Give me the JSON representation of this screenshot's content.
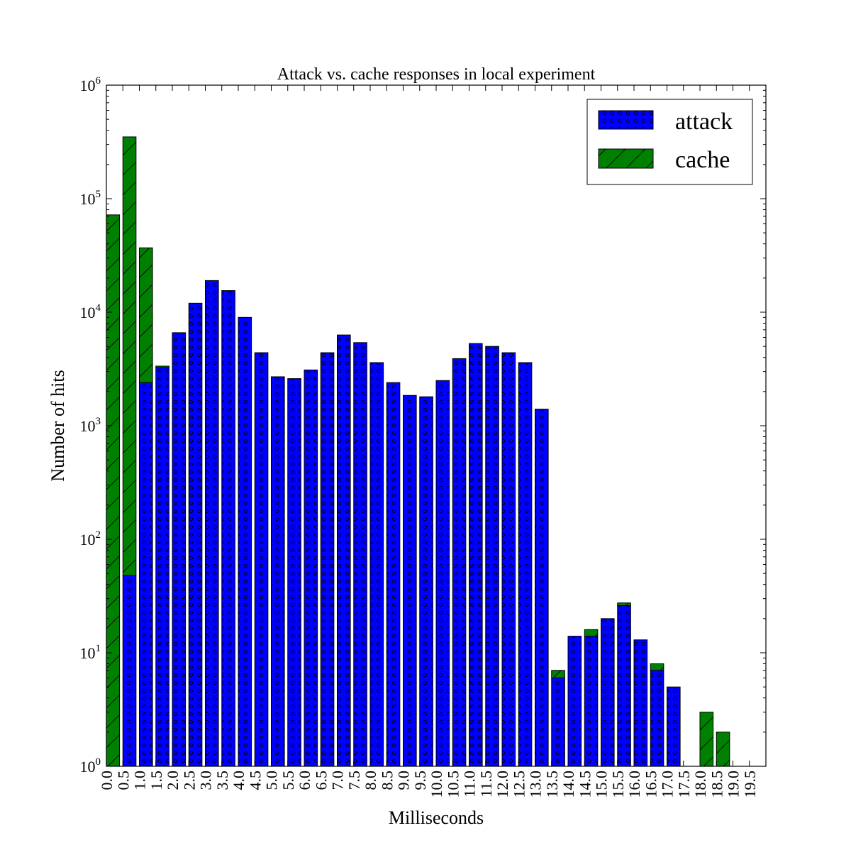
{
  "chart_data": {
    "type": "bar",
    "stacked": true,
    "title": "Attack vs. cache responses in local experiment",
    "xlabel": "Milliseconds",
    "ylabel": "Number of hits",
    "yscale": "log",
    "ylim": [
      1,
      1000000
    ],
    "xlim": [
      0,
      20
    ],
    "bin_width": 0.5,
    "grid": false,
    "legend_position": "top-right",
    "x_tick_labels": [
      "0.0",
      "0.5",
      "1.0",
      "1.5",
      "2.0",
      "2.5",
      "3.0",
      "3.5",
      "4.0",
      "4.5",
      "5.0",
      "5.5",
      "6.0",
      "6.5",
      "7.0",
      "7.5",
      "8.0",
      "8.5",
      "9.0",
      "9.5",
      "10.0",
      "10.5",
      "11.0",
      "11.5",
      "12.0",
      "12.5",
      "13.0",
      "13.5",
      "14.0",
      "14.5",
      "15.0",
      "15.5",
      "16.0",
      "16.5",
      "17.0",
      "17.5",
      "18.0",
      "18.5",
      "19.0",
      "19.5"
    ],
    "y_ticks": [
      {
        "value": 1,
        "base": "10",
        "exp": "0"
      },
      {
        "value": 10,
        "base": "10",
        "exp": "1"
      },
      {
        "value": 100,
        "base": "10",
        "exp": "2"
      },
      {
        "value": 1000,
        "base": "10",
        "exp": "3"
      },
      {
        "value": 10000,
        "base": "10",
        "exp": "4"
      },
      {
        "value": 100000,
        "base": "10",
        "exp": "5"
      },
      {
        "value": 1000000,
        "base": "10",
        "exp": "6"
      }
    ],
    "x": [
      0.0,
      0.5,
      1.0,
      1.5,
      2.0,
      2.5,
      3.0,
      3.5,
      4.0,
      4.5,
      5.0,
      5.5,
      6.0,
      6.5,
      7.0,
      7.5,
      8.0,
      8.5,
      9.0,
      9.5,
      10.0,
      10.5,
      11.0,
      11.5,
      12.0,
      12.5,
      13.0,
      13.5,
      14.0,
      14.5,
      15.0,
      15.5,
      16.0,
      16.5,
      17.0,
      17.5,
      18.0,
      18.5,
      19.0,
      19.5
    ],
    "series": [
      {
        "name": "attack",
        "color": "#0000ff",
        "values": [
          0,
          48,
          2400,
          3250,
          6600,
          12000,
          19000,
          15500,
          9000,
          4400,
          2700,
          2600,
          3100,
          4400,
          6300,
          5400,
          3600,
          2400,
          1850,
          1800,
          2500,
          3900,
          5300,
          5000,
          4400,
          3600,
          1400,
          6,
          14,
          14,
          20,
          26,
          13,
          7,
          5,
          0,
          0,
          0,
          0,
          0
        ]
      },
      {
        "name": "cache",
        "color": "#008000",
        "values": [
          72000,
          350000,
          34500,
          100,
          0,
          0,
          0,
          0,
          0,
          0,
          0,
          0,
          0,
          0,
          0,
          0,
          0,
          0,
          0,
          0,
          0,
          0,
          0,
          0,
          0,
          0,
          0,
          1,
          0,
          2,
          0,
          1.5,
          0,
          1,
          0,
          0,
          3,
          2,
          0,
          0
        ]
      }
    ]
  }
}
